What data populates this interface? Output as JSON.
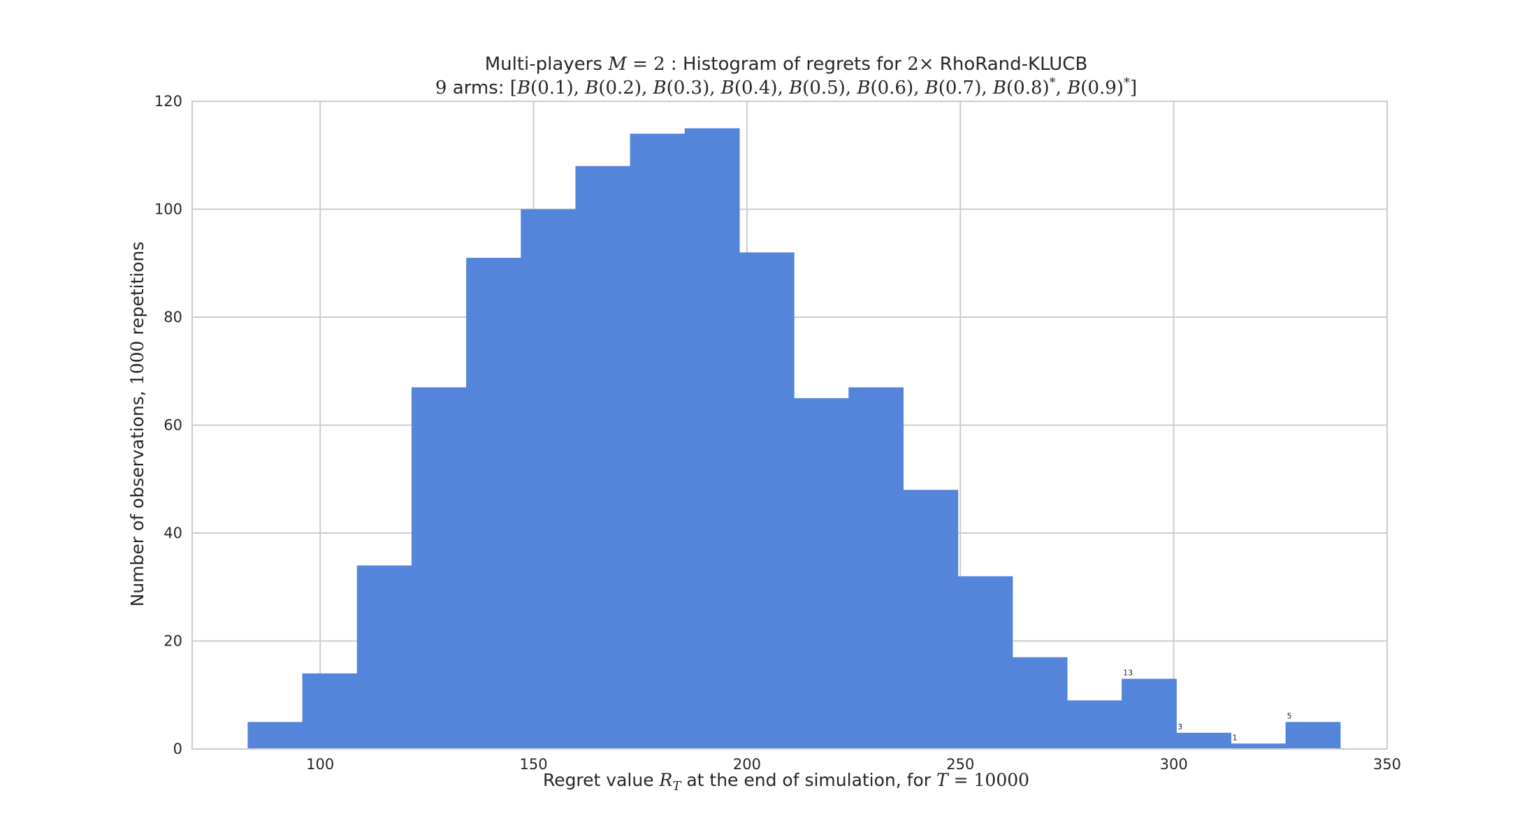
{
  "chart_data": {
    "type": "bar",
    "title": "Multi-players M = 2 : Histogram of regrets for 2× RhoRand-KLUCB",
    "subtitle": "9 arms: [B(0.1), B(0.2), B(0.3), B(0.4), B(0.5), B(0.6), B(0.7), B(0.8)*, B(0.9)*]",
    "xlabel": "Regret value R_T at the end of simulation, for T = 10000",
    "ylabel": "Number of observations, 1000 repetitions",
    "xlim": [
      70,
      350
    ],
    "ylim": [
      0,
      120
    ],
    "grid": true,
    "bar_color": "#5584db",
    "x_ticks": [
      100,
      150,
      200,
      250,
      300,
      350
    ],
    "y_ticks": [
      0,
      20,
      40,
      60,
      80,
      100,
      120
    ],
    "bins": [
      {
        "x0": 83.0,
        "x1": 95.8,
        "count": 5,
        "label": ""
      },
      {
        "x0": 95.8,
        "x1": 108.6,
        "count": 14,
        "label": ""
      },
      {
        "x0": 108.6,
        "x1": 121.4,
        "count": 34,
        "label": ""
      },
      {
        "x0": 121.4,
        "x1": 134.2,
        "count": 67,
        "label": ""
      },
      {
        "x0": 134.2,
        "x1": 147.0,
        "count": 91,
        "label": ""
      },
      {
        "x0": 147.0,
        "x1": 159.8,
        "count": 100,
        "label": ""
      },
      {
        "x0": 159.8,
        "x1": 172.6,
        "count": 108,
        "label": ""
      },
      {
        "x0": 172.6,
        "x1": 185.4,
        "count": 114,
        "label": ""
      },
      {
        "x0": 185.4,
        "x1": 198.2,
        "count": 115,
        "label": ""
      },
      {
        "x0": 198.2,
        "x1": 211.0,
        "count": 92,
        "label": ""
      },
      {
        "x0": 211.0,
        "x1": 223.8,
        "count": 65,
        "label": ""
      },
      {
        "x0": 223.8,
        "x1": 236.6,
        "count": 67,
        "label": ""
      },
      {
        "x0": 236.6,
        "x1": 249.4,
        "count": 48,
        "label": ""
      },
      {
        "x0": 249.4,
        "x1": 262.2,
        "count": 32,
        "label": ""
      },
      {
        "x0": 262.2,
        "x1": 275.0,
        "count": 17,
        "label": ""
      },
      {
        "x0": 275.0,
        "x1": 287.8,
        "count": 9,
        "label": ""
      },
      {
        "x0": 287.8,
        "x1": 300.6,
        "count": 13,
        "label": "13"
      },
      {
        "x0": 300.6,
        "x1": 313.4,
        "count": 3,
        "label": "3"
      },
      {
        "x0": 313.4,
        "x1": 326.2,
        "count": 1,
        "label": "1"
      },
      {
        "x0": 326.2,
        "x1": 339.0,
        "count": 5,
        "label": "5"
      }
    ]
  }
}
